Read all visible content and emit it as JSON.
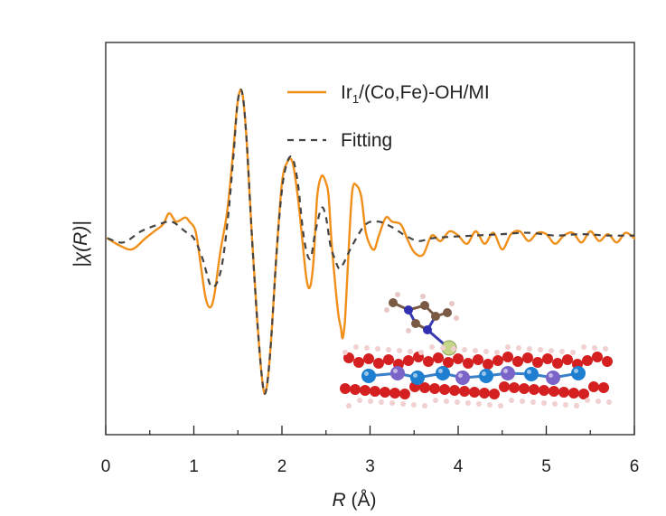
{
  "chart_data": {
    "type": "line",
    "title": "",
    "xlabel": "R (Å)",
    "xlabel_italic": "R",
    "xlabel_unit": " (Å)",
    "ylabel": "|χ(R)|",
    "xlim": [
      0,
      6
    ],
    "ylim": [
      -1.2,
      1.25
    ],
    "xticks": [
      "0",
      "1",
      "2",
      "3",
      "4",
      "5",
      "6"
    ],
    "legend_position": "top-right",
    "series": [
      {
        "name": "Ir1/(Co,Fe)-OH/MI",
        "legend_main": "Ir",
        "legend_sub": "1",
        "legend_rest": "/(Co,Fe)-OH/MI",
        "color": "#F0901A",
        "style": "solid",
        "x": [
          0.02,
          0.15,
          0.3,
          0.45,
          0.55,
          0.65,
          0.72,
          0.8,
          0.9,
          0.95,
          1.02,
          1.08,
          1.13,
          1.18,
          1.23,
          1.3,
          1.38,
          1.45,
          1.5,
          1.55,
          1.6,
          1.66,
          1.72,
          1.78,
          1.82,
          1.87,
          1.94,
          2.0,
          2.06,
          2.12,
          2.18,
          2.23,
          2.28,
          2.32,
          2.36,
          2.4,
          2.45,
          2.5,
          2.53,
          2.56,
          2.6,
          2.64,
          2.67,
          2.69,
          2.72,
          2.76,
          2.8,
          2.85,
          2.9,
          2.95,
          3.0,
          3.05,
          3.1,
          3.18,
          3.25,
          3.35,
          3.42,
          3.5,
          3.6,
          3.7,
          3.8,
          3.9,
          4.0,
          4.1,
          4.2,
          4.3,
          4.4,
          4.5,
          4.6,
          4.7,
          4.8,
          4.9,
          5.0,
          5.1,
          5.2,
          5.3,
          5.4,
          5.5,
          5.6,
          5.7,
          5.8,
          5.9,
          6.0
        ],
        "y": [
          0.0,
          -0.05,
          -0.08,
          0.0,
          0.05,
          0.1,
          0.18,
          0.12,
          0.15,
          0.12,
          0.05,
          -0.2,
          -0.42,
          -0.5,
          -0.42,
          -0.1,
          0.2,
          0.65,
          1.0,
          1.05,
          0.7,
          0.0,
          -0.6,
          -1.05,
          -1.1,
          -0.8,
          -0.1,
          0.4,
          0.55,
          0.55,
          0.3,
          0.0,
          -0.3,
          -0.35,
          -0.15,
          0.3,
          0.45,
          0.4,
          0.3,
          0.0,
          -0.3,
          -0.55,
          -0.65,
          -0.72,
          -0.55,
          -0.05,
          0.35,
          0.38,
          0.3,
          0.05,
          -0.05,
          -0.08,
          0.02,
          0.15,
          0.12,
          0.1,
          0.0,
          -0.1,
          -0.12,
          0.02,
          -0.02,
          0.05,
          0.02,
          -0.04,
          0.05,
          -0.04,
          0.04,
          -0.08,
          0.03,
          0.05,
          -0.02,
          0.04,
          0.03,
          -0.04,
          0.02,
          0.04,
          -0.03,
          0.05,
          -0.02,
          0.03,
          -0.03,
          0.04,
          0.0
        ]
      },
      {
        "name": "Fitting",
        "color": "#444444",
        "style": "dashed",
        "x": [
          0.02,
          0.2,
          0.4,
          0.6,
          0.75,
          0.9,
          1.0,
          1.1,
          1.2,
          1.3,
          1.38,
          1.45,
          1.5,
          1.55,
          1.6,
          1.66,
          1.72,
          1.78,
          1.82,
          1.87,
          1.94,
          2.0,
          2.06,
          2.12,
          2.18,
          2.25,
          2.32,
          2.38,
          2.45,
          2.5,
          2.55,
          2.6,
          2.65,
          2.7,
          2.8,
          2.95,
          3.1,
          3.25,
          3.4,
          3.55,
          3.7,
          3.9,
          4.2,
          4.5,
          4.8,
          5.1,
          5.4,
          5.7,
          6.0
        ],
        "y": [
          0.0,
          -0.03,
          0.05,
          0.1,
          0.12,
          0.05,
          0.0,
          -0.15,
          -0.35,
          -0.25,
          0.1,
          0.6,
          1.0,
          1.05,
          0.7,
          0.0,
          -0.6,
          -1.05,
          -1.1,
          -0.8,
          -0.1,
          0.35,
          0.55,
          0.58,
          0.4,
          0.0,
          -0.15,
          0.05,
          0.22,
          0.15,
          -0.05,
          -0.15,
          -0.22,
          -0.18,
          -0.05,
          0.1,
          0.12,
          0.08,
          0.02,
          -0.02,
          0.0,
          0.01,
          0.02,
          0.03,
          0.04,
          0.02,
          0.03,
          0.02,
          0.02
        ]
      }
    ],
    "inset": "molecular structure model"
  }
}
